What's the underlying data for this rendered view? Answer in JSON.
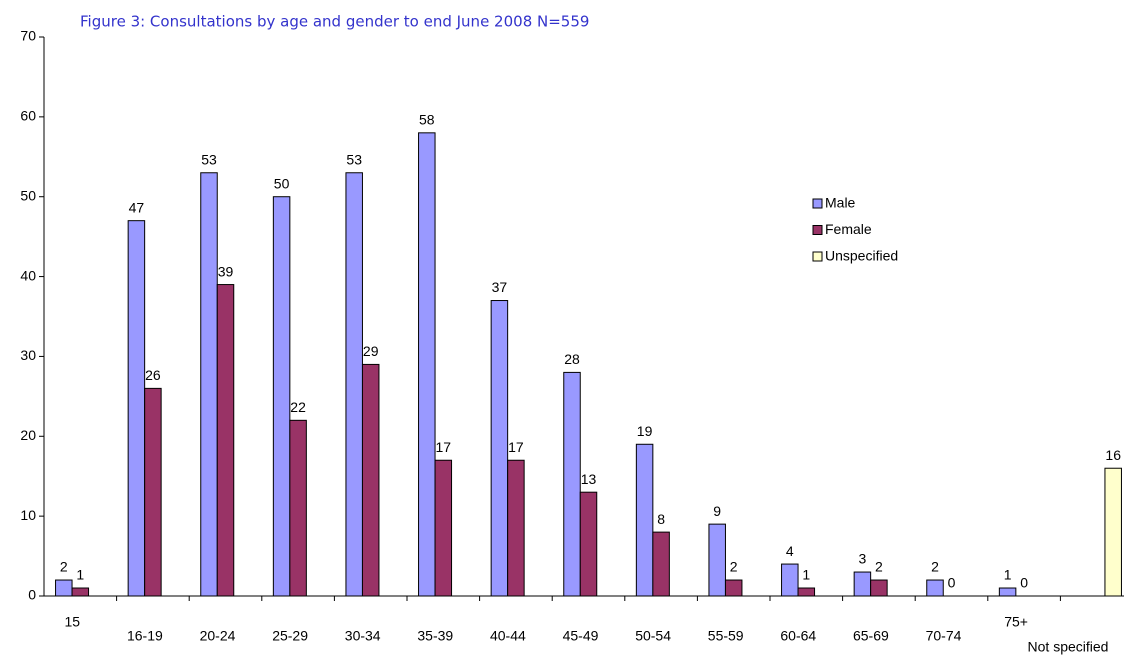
{
  "chart_data": {
    "type": "bar",
    "title": "Figure 3: Consultations by age and gender to end June 2008 N=559",
    "categories": [
      "15",
      "16-19",
      "20-24",
      "25-29",
      "30-34",
      "35-39",
      "40-44",
      "45-49",
      "50-54",
      "55-59",
      "60-64",
      "65-69",
      "70-74",
      "75+",
      "Not specified"
    ],
    "series": [
      {
        "name": "Male",
        "color": "#9999ff",
        "values": [
          2,
          47,
          53,
          50,
          53,
          58,
          37,
          28,
          19,
          9,
          4,
          3,
          2,
          1,
          null
        ]
      },
      {
        "name": "Female",
        "color": "#993366",
        "values": [
          1,
          26,
          39,
          22,
          29,
          17,
          17,
          13,
          8,
          2,
          1,
          2,
          0,
          0,
          null
        ]
      },
      {
        "name": "Unspecified",
        "color": "#ffffcc",
        "values": [
          null,
          null,
          null,
          null,
          null,
          null,
          null,
          null,
          null,
          null,
          null,
          null,
          null,
          null,
          16
        ]
      }
    ],
    "ylim": [
      0,
      70
    ],
    "yticks": [
      0,
      10,
      20,
      30,
      40,
      50,
      60,
      70
    ],
    "grid": false,
    "legend": "right"
  }
}
